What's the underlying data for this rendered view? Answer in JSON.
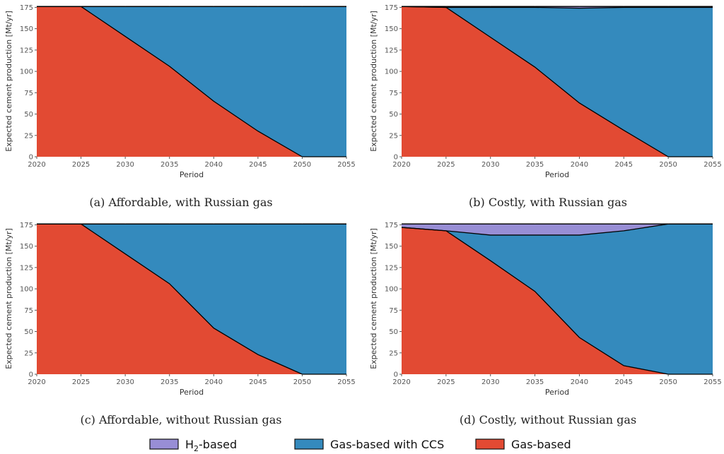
{
  "colors": {
    "h2": "#988ED5",
    "ccs": "#348ABD",
    "gas": "#E24A33",
    "plot_bg": "#E5E5E5",
    "grid": "#FFFFFF"
  },
  "legend": [
    {
      "key": "h2",
      "label": "H",
      "sub": "2",
      "suffix": "-based"
    },
    {
      "key": "ccs",
      "label": "Gas-based with CCS",
      "sub": "",
      "suffix": ""
    },
    {
      "key": "gas",
      "label": "Gas-based",
      "sub": "",
      "suffix": ""
    }
  ],
  "chart_data": [
    {
      "type": "area",
      "panel": "a",
      "caption": "(a) Affordable, with Russian gas",
      "xlabel": "Period",
      "ylabel": "Expected cement production [Mt/yr]",
      "xlim": [
        2020,
        2055
      ],
      "ylim": [
        0,
        177
      ],
      "xticks": [
        2020,
        2025,
        2030,
        2035,
        2040,
        2045,
        2050,
        2055
      ],
      "yticks": [
        0,
        25,
        50,
        75,
        100,
        125,
        150,
        175
      ],
      "x": [
        2020,
        2025,
        2030,
        2035,
        2040,
        2045,
        2050,
        2055
      ],
      "series": [
        {
          "key": "gas",
          "name": "Gas-based",
          "values": [
            176,
            176,
            141,
            106,
            65,
            30,
            0,
            0
          ]
        },
        {
          "key": "ccs",
          "name": "Gas-based with CCS",
          "values": [
            0,
            0,
            35,
            70,
            111,
            146,
            176,
            176
          ]
        },
        {
          "key": "h2",
          "name": "H2-based",
          "values": [
            0,
            0,
            0,
            0,
            0,
            0,
            0,
            0
          ]
        }
      ]
    },
    {
      "type": "area",
      "panel": "b",
      "caption": "(b) Costly, with Russian gas",
      "xlabel": "Period",
      "ylabel": "Expected cement production [Mt/yr]",
      "xlim": [
        2020,
        2055
      ],
      "ylim": [
        0,
        177
      ],
      "xticks": [
        2020,
        2025,
        2030,
        2035,
        2040,
        2045,
        2050,
        2055
      ],
      "yticks": [
        0,
        25,
        50,
        75,
        100,
        125,
        150,
        175
      ],
      "x": [
        2020,
        2025,
        2030,
        2035,
        2040,
        2045,
        2050,
        2055
      ],
      "series": [
        {
          "key": "gas",
          "name": "Gas-based",
          "values": [
            176,
            175,
            140,
            105,
            63,
            31,
            0,
            0
          ]
        },
        {
          "key": "ccs",
          "name": "Gas-based with CCS",
          "values": [
            0,
            0,
            35,
            70,
            111,
            144,
            175,
            175
          ]
        },
        {
          "key": "h2",
          "name": "H2-based",
          "values": [
            0,
            1,
            1,
            1,
            2,
            1,
            1,
            1
          ]
        }
      ]
    },
    {
      "type": "area",
      "panel": "c",
      "caption": "(c) Affordable, without Russian gas",
      "xlabel": "Period",
      "ylabel": "Expected cement production [Mt/yr]",
      "xlim": [
        2020,
        2055
      ],
      "ylim": [
        0,
        177
      ],
      "xticks": [
        2020,
        2025,
        2030,
        2035,
        2040,
        2045,
        2050,
        2055
      ],
      "yticks": [
        0,
        25,
        50,
        75,
        100,
        125,
        150,
        175
      ],
      "x": [
        2020,
        2025,
        2030,
        2035,
        2040,
        2045,
        2050,
        2055
      ],
      "series": [
        {
          "key": "gas",
          "name": "Gas-based",
          "values": [
            176,
            176,
            141,
            106,
            54,
            23,
            0,
            0
          ]
        },
        {
          "key": "ccs",
          "name": "Gas-based with CCS",
          "values": [
            0,
            0,
            35,
            70,
            122,
            153,
            176,
            176
          ]
        },
        {
          "key": "h2",
          "name": "H2-based",
          "values": [
            0,
            0,
            0,
            0,
            0,
            0,
            0,
            0
          ]
        }
      ]
    },
    {
      "type": "area",
      "panel": "d",
      "caption": "(d) Costly, without Russian gas",
      "xlabel": "Period",
      "ylabel": "Expected cement production [Mt/yr]",
      "xlim": [
        2020,
        2055
      ],
      "ylim": [
        0,
        177
      ],
      "xticks": [
        2020,
        2025,
        2030,
        2035,
        2040,
        2045,
        2050,
        2055
      ],
      "yticks": [
        0,
        25,
        50,
        75,
        100,
        125,
        150,
        175
      ],
      "x": [
        2020,
        2025,
        2030,
        2035,
        2040,
        2045,
        2050,
        2055
      ],
      "series": [
        {
          "key": "gas",
          "name": "Gas-based",
          "values": [
            172,
            168,
            133,
            97,
            43,
            10,
            0,
            0
          ]
        },
        {
          "key": "ccs",
          "name": "Gas-based with CCS",
          "values": [
            0,
            0,
            30,
            66,
            120,
            158,
            176,
            176
          ]
        },
        {
          "key": "h2",
          "name": "H2-based",
          "values": [
            4,
            8,
            13,
            13,
            13,
            8,
            0,
            0
          ]
        }
      ]
    }
  ]
}
